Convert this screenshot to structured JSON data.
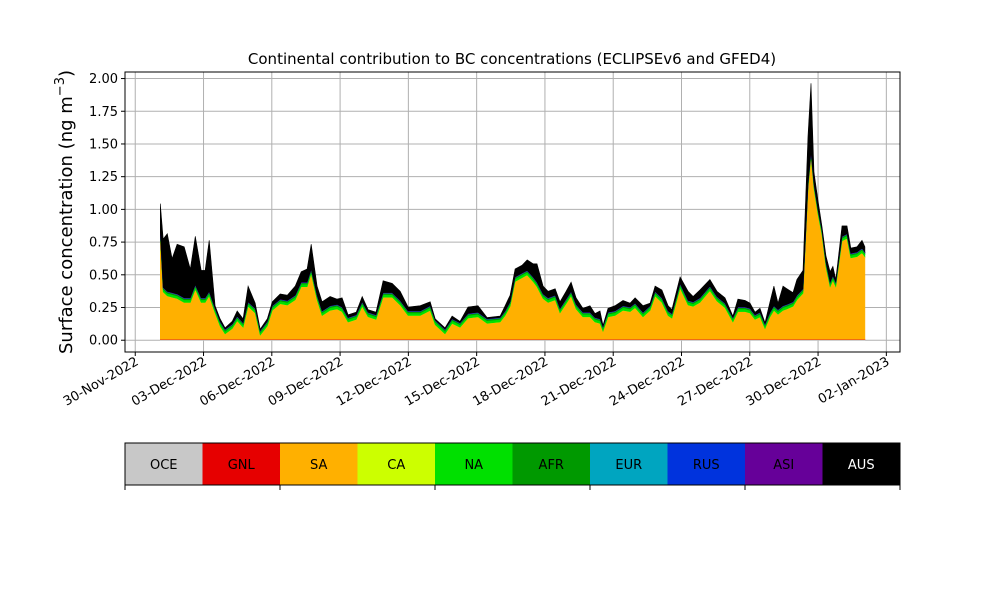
{
  "chart_data": {
    "type": "area",
    "stacked": true,
    "title": "Continental contribution to BC concentrations (ECLIPSEv6 and GFED4)",
    "ylabel": "Surface concentration (ng m",
    "ylabel_sup": "−3",
    "ylabel_close": ")",
    "xlabel": "",
    "ylim": [
      -0.09,
      2.05
    ],
    "yticks": [
      0.0,
      0.25,
      0.5,
      0.75,
      1.0,
      1.25,
      1.5,
      1.75,
      2.0
    ],
    "ytick_labels": [
      "0.00",
      "0.25",
      "0.50",
      "0.75",
      "1.00",
      "1.25",
      "1.50",
      "1.75",
      "2.00"
    ],
    "x_unit": "days since 30-Nov-2022",
    "xlim": [
      -0.45,
      33.6
    ],
    "xticks": [
      0,
      3,
      6,
      9,
      12,
      15,
      18,
      21,
      24,
      27,
      30,
      33
    ],
    "xtick_labels": [
      "30-Nov-2022",
      "03-Dec-2022",
      "06-Dec-2022",
      "09-Dec-2022",
      "12-Dec-2022",
      "15-Dec-2022",
      "18-Dec-2022",
      "21-Dec-2022",
      "24-Dec-2022",
      "27-Dec-2022",
      "30-Dec-2022",
      "02-Jan-2023"
    ],
    "grid": true,
    "x": [
      1.1,
      1.23,
      1.41,
      1.62,
      1.84,
      2.15,
      2.42,
      2.64,
      2.9,
      3.07,
      3.25,
      3.51,
      3.73,
      3.95,
      4.26,
      4.48,
      4.74,
      4.96,
      5.27,
      5.49,
      5.8,
      6.02,
      6.37,
      6.68,
      7.03,
      7.29,
      7.55,
      7.73,
      7.99,
      8.21,
      8.56,
      8.87,
      9.09,
      9.35,
      9.71,
      9.97,
      10.23,
      10.58,
      10.89,
      11.29,
      11.64,
      11.99,
      12.52,
      12.96,
      13.18,
      13.61,
      13.92,
      14.27,
      14.62,
      15.06,
      15.46,
      16.03,
      16.25,
      16.47,
      16.69,
      17.0,
      17.22,
      17.48,
      17.65,
      17.92,
      18.14,
      18.45,
      18.66,
      18.93,
      19.15,
      19.37,
      19.67,
      19.98,
      20.2,
      20.42,
      20.55,
      20.77,
      21.08,
      21.43,
      21.74,
      21.96,
      22.31,
      22.62,
      22.84,
      23.14,
      23.41,
      23.58,
      23.94,
      24.29,
      24.51,
      24.81,
      25.25,
      25.56,
      25.91,
      26.26,
      26.48,
      26.79,
      27.01,
      27.23,
      27.45,
      27.67,
      27.89,
      28.06,
      28.24,
      28.46,
      28.63,
      28.9,
      29.07,
      29.34,
      29.56,
      29.69,
      29.82,
      30.0,
      30.17,
      30.35,
      30.53,
      30.65,
      30.78,
      31.05,
      31.27,
      31.44,
      31.71,
      31.93,
      32.06
    ],
    "series": [
      {
        "name": "OCE",
        "color": "#c8c8c8",
        "constant": 0.005
      },
      {
        "name": "GNL",
        "color": "#e60000",
        "constant": 0.003
      },
      {
        "name": "SA",
        "color": "#ffb000",
        "values": [
          0.78,
          0.36,
          0.33,
          0.32,
          0.31,
          0.28,
          0.28,
          0.38,
          0.28,
          0.28,
          0.33,
          0.2,
          0.1,
          0.04,
          0.08,
          0.14,
          0.09,
          0.25,
          0.2,
          0.03,
          0.1,
          0.22,
          0.27,
          0.26,
          0.3,
          0.4,
          0.4,
          0.5,
          0.3,
          0.18,
          0.22,
          0.23,
          0.21,
          0.13,
          0.15,
          0.25,
          0.17,
          0.15,
          0.32,
          0.32,
          0.26,
          0.18,
          0.18,
          0.22,
          0.11,
          0.04,
          0.12,
          0.09,
          0.16,
          0.17,
          0.12,
          0.13,
          0.18,
          0.25,
          0.44,
          0.47,
          0.49,
          0.44,
          0.4,
          0.31,
          0.28,
          0.3,
          0.2,
          0.27,
          0.33,
          0.23,
          0.17,
          0.17,
          0.13,
          0.12,
          0.06,
          0.17,
          0.18,
          0.22,
          0.21,
          0.24,
          0.17,
          0.22,
          0.33,
          0.28,
          0.18,
          0.16,
          0.39,
          0.26,
          0.25,
          0.28,
          0.37,
          0.29,
          0.24,
          0.13,
          0.21,
          0.21,
          0.2,
          0.15,
          0.17,
          0.08,
          0.17,
          0.22,
          0.19,
          0.22,
          0.23,
          0.25,
          0.3,
          0.35,
          1.15,
          1.4,
          1.15,
          0.95,
          0.8,
          0.55,
          0.4,
          0.45,
          0.4,
          0.75,
          0.77,
          0.62,
          0.63,
          0.66,
          0.63
        ]
      },
      {
        "name": "CA",
        "color": "#ccff00",
        "constant": 0.001
      },
      {
        "name": "NA",
        "color": "#00e000",
        "constant": 0.02
      },
      {
        "name": "AFR",
        "color": "#009900",
        "constant": 0.01
      },
      {
        "name": "EUR",
        "color": "#00a5c0",
        "constant": 0.001
      },
      {
        "name": "RUS",
        "color": "#0033dd",
        "constant": 0.002
      },
      {
        "name": "ASI",
        "color": "#660099",
        "constant": 0.002
      },
      {
        "name": "AUS",
        "color": "#000000",
        "values": [
          0.22,
          0.37,
          0.44,
          0.26,
          0.38,
          0.39,
          0.22,
          0.37,
          0.21,
          0.21,
          0.39,
          0.02,
          0.02,
          0.01,
          0.02,
          0.04,
          0.03,
          0.12,
          0.04,
          0.01,
          0.02,
          0.03,
          0.04,
          0.04,
          0.07,
          0.08,
          0.1,
          0.19,
          0.07,
          0.07,
          0.07,
          0.04,
          0.07,
          0.02,
          0.02,
          0.04,
          0.02,
          0.02,
          0.09,
          0.07,
          0.07,
          0.03,
          0.04,
          0.03,
          0.01,
          0.01,
          0.02,
          0.01,
          0.05,
          0.05,
          0.01,
          0.01,
          0.04,
          0.05,
          0.06,
          0.06,
          0.08,
          0.1,
          0.14,
          0.06,
          0.05,
          0.05,
          0.05,
          0.06,
          0.07,
          0.05,
          0.03,
          0.05,
          0.03,
          0.06,
          0.01,
          0.03,
          0.04,
          0.04,
          0.03,
          0.04,
          0.05,
          0.02,
          0.04,
          0.06,
          0.04,
          0.03,
          0.05,
          0.07,
          0.04,
          0.06,
          0.05,
          0.04,
          0.04,
          0.01,
          0.06,
          0.05,
          0.04,
          0.02,
          0.03,
          0.01,
          0.08,
          0.15,
          0.05,
          0.15,
          0.12,
          0.07,
          0.12,
          0.14,
          0.37,
          0.52,
          0.09,
          0.07,
          0.03,
          0.05,
          0.08,
          0.07,
          0.02,
          0.08,
          0.06,
          0.04,
          0.04,
          0.06,
          0.04
        ]
      }
    ],
    "legend": {
      "placement": "bottom",
      "type": "colorbar",
      "labels": [
        "OCE",
        "GNL",
        "SA",
        "CA",
        "NA",
        "AFR",
        "EUR",
        "RUS",
        "ASI",
        "AUS"
      ]
    }
  }
}
